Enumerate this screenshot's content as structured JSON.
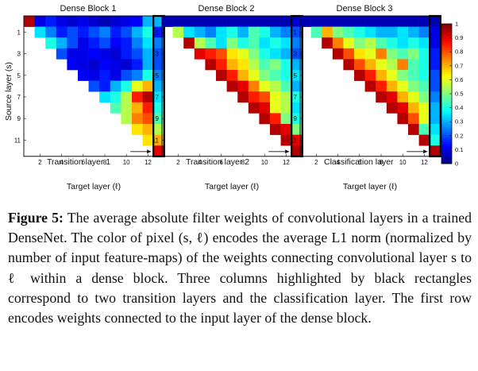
{
  "figure": {
    "panels": [
      {
        "title": "Dense Block 1",
        "annotation": "Transition layer 1"
      },
      {
        "title": "Dense Block 2",
        "annotation": "Transition layer 2"
      },
      {
        "title": "Dense Block 3",
        "annotation": "Classification layer"
      }
    ],
    "xlabel": "Target layer (ℓ)",
    "ylabel": "Source layer (s)",
    "x_ticks": [
      "2",
      "4",
      "6",
      "8",
      "10",
      "12"
    ],
    "y_ticks": [
      "1",
      "3",
      "5",
      "7",
      "9",
      "11"
    ],
    "colorbar_ticks": [
      "0",
      "0.1",
      "0.2",
      "0.3",
      "0.4",
      "0.5",
      "0.6",
      "0.7",
      "0.8",
      "0.9",
      "1"
    ]
  },
  "caption": {
    "label": "Figure 5:",
    "text": "The average absolute filter weights of convolutional layers in a trained DenseNet. The color of pixel (s, ℓ) encodes the average L1 norm (normalized by number of input feature-maps) of the weights connecting convolutional layer s to ℓ within a dense block. Three columns highlighted by black rectangles correspond to two transition layers and the classification layer. The first row encodes weights connected to the input layer of the dense block."
  },
  "chart_data": [
    {
      "type": "heatmap",
      "title": "Dense Block 1",
      "xlabel": "Target layer (ℓ)",
      "ylabel": "Source layer (s)",
      "x_ticks": [
        2,
        4,
        6,
        8,
        10,
        12
      ],
      "y_ticks": [
        1,
        3,
        5,
        7,
        9,
        11
      ],
      "color_range": [
        0,
        1
      ],
      "colorbar_ticks": [
        0,
        0.1,
        0.2,
        0.3,
        0.4,
        0.5,
        0.6,
        0.7,
        0.8,
        0.9,
        1
      ],
      "highlighted_column": "Transition layer 1",
      "rows": [
        [
          0.95,
          0.1,
          0.15,
          0.1,
          0.08,
          0.1,
          0.08,
          0.05,
          0.08,
          0.1,
          0.12,
          0.3,
          0.3
        ],
        [
          null,
          0.35,
          0.25,
          0.15,
          0.2,
          0.15,
          0.2,
          0.25,
          0.15,
          0.2,
          0.3,
          0.4,
          0.15
        ],
        [
          null,
          null,
          0.4,
          0.3,
          0.2,
          0.1,
          0.15,
          0.2,
          0.12,
          0.15,
          0.25,
          0.35,
          0.25
        ],
        [
          null,
          null,
          null,
          0.2,
          0.1,
          0.1,
          0.12,
          0.1,
          0.08,
          0.15,
          0.2,
          0.3,
          0.2
        ],
        [
          null,
          null,
          null,
          null,
          0.12,
          0.1,
          0.08,
          0.12,
          0.1,
          0.08,
          0.15,
          0.3,
          0.2
        ],
        [
          null,
          null,
          null,
          null,
          null,
          0.12,
          0.1,
          0.15,
          0.1,
          0.2,
          0.25,
          0.4,
          0.25
        ],
        [
          null,
          null,
          null,
          null,
          null,
          null,
          0.2,
          0.15,
          0.3,
          0.4,
          0.6,
          0.7,
          0.3
        ],
        [
          null,
          null,
          null,
          null,
          null,
          null,
          null,
          0.35,
          0.4,
          0.55,
          0.85,
          0.95,
          0.35
        ],
        [
          null,
          null,
          null,
          null,
          null,
          null,
          null,
          null,
          0.45,
          0.55,
          0.7,
          0.85,
          0.4
        ],
        [
          null,
          null,
          null,
          null,
          null,
          null,
          null,
          null,
          null,
          0.55,
          0.75,
          0.8,
          0.45
        ],
        [
          null,
          null,
          null,
          null,
          null,
          null,
          null,
          null,
          null,
          null,
          0.65,
          0.7,
          0.55
        ],
        [
          null,
          null,
          null,
          null,
          null,
          null,
          null,
          null,
          null,
          null,
          null,
          0.65,
          0.7
        ],
        [
          null,
          null,
          null,
          null,
          null,
          null,
          null,
          null,
          null,
          null,
          null,
          null,
          0.9
        ]
      ]
    },
    {
      "type": "heatmap",
      "title": "Dense Block 2",
      "xlabel": "Target layer (ℓ)",
      "ylabel": "",
      "x_ticks": [
        2,
        4,
        6,
        8,
        10,
        12
      ],
      "y_ticks": [
        1,
        3,
        5,
        7,
        9,
        11
      ],
      "color_range": [
        0,
        1
      ],
      "highlighted_column": "Transition layer 2",
      "rows": [
        [
          0.05,
          0.05,
          0.05,
          0.05,
          0.05,
          0.05,
          0.05,
          0.05,
          0.05,
          0.05,
          0.05,
          0.05,
          0.08
        ],
        [
          null,
          0.55,
          0.35,
          0.3,
          0.25,
          0.35,
          0.4,
          0.3,
          0.45,
          0.4,
          0.3,
          0.25,
          0.2
        ],
        [
          null,
          null,
          0.95,
          0.55,
          0.45,
          0.35,
          0.5,
          0.4,
          0.45,
          0.35,
          0.4,
          0.35,
          0.25
        ],
        [
          null,
          null,
          null,
          0.9,
          0.85,
          0.8,
          0.65,
          0.6,
          0.5,
          0.4,
          0.35,
          0.3,
          0.2
        ],
        [
          null,
          null,
          null,
          null,
          0.95,
          0.85,
          0.7,
          0.65,
          0.55,
          0.45,
          0.5,
          0.4,
          0.3
        ],
        [
          null,
          null,
          null,
          null,
          null,
          0.95,
          0.85,
          0.7,
          0.6,
          0.5,
          0.45,
          0.4,
          0.35
        ],
        [
          null,
          null,
          null,
          null,
          null,
          null,
          0.95,
          0.9,
          0.75,
          0.6,
          0.55,
          0.45,
          0.3
        ],
        [
          null,
          null,
          null,
          null,
          null,
          null,
          null,
          0.95,
          0.85,
          0.8,
          0.6,
          0.55,
          0.4
        ],
        [
          null,
          null,
          null,
          null,
          null,
          null,
          null,
          null,
          0.95,
          0.9,
          0.6,
          0.55,
          0.35
        ],
        [
          null,
          null,
          null,
          null,
          null,
          null,
          null,
          null,
          null,
          0.95,
          0.85,
          0.5,
          0.4
        ],
        [
          null,
          null,
          null,
          null,
          null,
          null,
          null,
          null,
          null,
          null,
          0.95,
          0.9,
          0.5
        ],
        [
          null,
          null,
          null,
          null,
          null,
          null,
          null,
          null,
          null,
          null,
          null,
          0.95,
          0.9
        ],
        [
          null,
          null,
          null,
          null,
          null,
          null,
          null,
          null,
          null,
          null,
          null,
          null,
          0.95
        ]
      ]
    },
    {
      "type": "heatmap",
      "title": "Dense Block 3",
      "xlabel": "Target layer (ℓ)",
      "ylabel": "",
      "x_ticks": [
        2,
        4,
        6,
        8,
        10,
        12
      ],
      "y_ticks": [
        1,
        3,
        5,
        7,
        9,
        11
      ],
      "color_range": [
        0,
        1
      ],
      "highlighted_column": "Classification layer",
      "rows": [
        [
          0.05,
          0.05,
          0.05,
          0.05,
          0.05,
          0.05,
          0.05,
          0.05,
          0.05,
          0.05,
          0.05,
          0.05,
          0.05
        ],
        [
          null,
          0.45,
          0.7,
          0.5,
          0.45,
          0.4,
          0.35,
          0.3,
          0.3,
          0.35,
          0.3,
          0.25,
          0.1
        ],
        [
          null,
          null,
          0.95,
          0.75,
          0.6,
          0.5,
          0.55,
          0.45,
          0.4,
          0.35,
          0.4,
          0.35,
          0.1
        ],
        [
          null,
          null,
          null,
          0.95,
          0.8,
          0.65,
          0.6,
          0.75,
          0.5,
          0.45,
          0.5,
          0.4,
          0.15
        ],
        [
          null,
          null,
          null,
          null,
          0.95,
          0.8,
          0.7,
          0.6,
          0.55,
          0.75,
          0.45,
          0.4,
          0.15
        ],
        [
          null,
          null,
          null,
          null,
          null,
          0.95,
          0.85,
          0.7,
          0.6,
          0.5,
          0.45,
          0.4,
          0.2
        ],
        [
          null,
          null,
          null,
          null,
          null,
          null,
          0.95,
          0.85,
          0.7,
          0.6,
          0.5,
          0.45,
          0.2
        ],
        [
          null,
          null,
          null,
          null,
          null,
          null,
          null,
          0.95,
          0.9,
          0.7,
          0.6,
          0.5,
          0.25
        ],
        [
          null,
          null,
          null,
          null,
          null,
          null,
          null,
          null,
          0.95,
          0.9,
          0.7,
          0.6,
          0.3
        ],
        [
          null,
          null,
          null,
          null,
          null,
          null,
          null,
          null,
          null,
          0.95,
          0.8,
          0.6,
          0.3
        ],
        [
          null,
          null,
          null,
          null,
          null,
          null,
          null,
          null,
          null,
          null,
          0.95,
          0.45,
          0.35
        ],
        [
          null,
          null,
          null,
          null,
          null,
          null,
          null,
          null,
          null,
          null,
          null,
          0.95,
          0.4
        ],
        [
          null,
          null,
          null,
          null,
          null,
          null,
          null,
          null,
          null,
          null,
          null,
          null,
          0.95
        ]
      ]
    }
  ]
}
